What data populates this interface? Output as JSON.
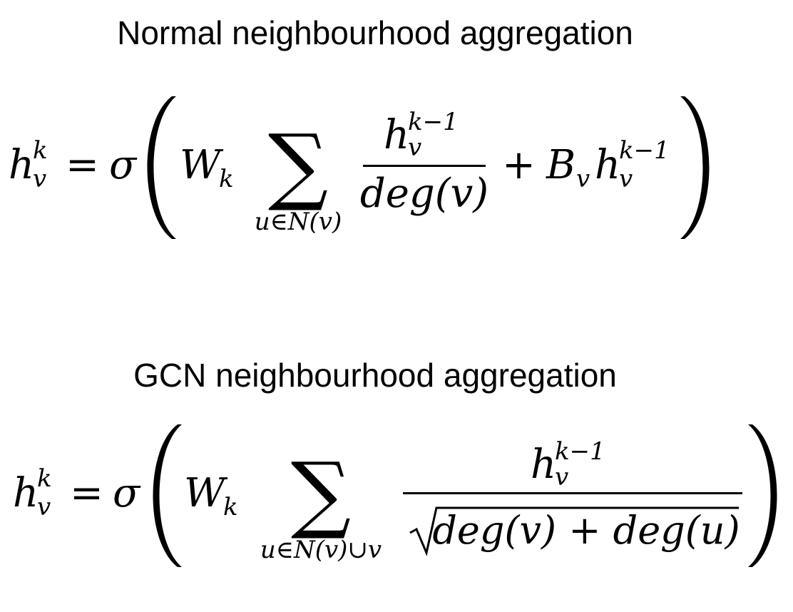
{
  "formulas": [
    {
      "title": "Normal neighbourhood aggregation",
      "lhs": {
        "base": "h",
        "sup": "k",
        "sub": "v"
      },
      "equals": "=",
      "activation": "σ",
      "weight": {
        "base": "W",
        "sub": "k"
      },
      "sum_symbol": "∑",
      "sum_index": "u∈N(v)",
      "fraction": {
        "numerator": {
          "base": "h",
          "sup": "k−1",
          "sub": "v"
        },
        "denominator": "deg(v)"
      },
      "plus": "+",
      "bias": {
        "base": "B",
        "sub": "v"
      },
      "self_term": {
        "base": "h",
        "sup": "k−1",
        "sub": "v"
      }
    },
    {
      "title": "GCN neighbourhood aggregation",
      "lhs": {
        "base": "h",
        "sup": "k",
        "sub": "v"
      },
      "equals": "=",
      "activation": "σ",
      "weight": {
        "base": "W",
        "sub": "k"
      },
      "sum_symbol": "∑",
      "sum_index": "u∈N(v)∪v",
      "fraction": {
        "numerator": {
          "base": "h",
          "sup": "k−1",
          "sub": "v"
        },
        "denominator": "deg(v) + deg(u)"
      }
    }
  ]
}
